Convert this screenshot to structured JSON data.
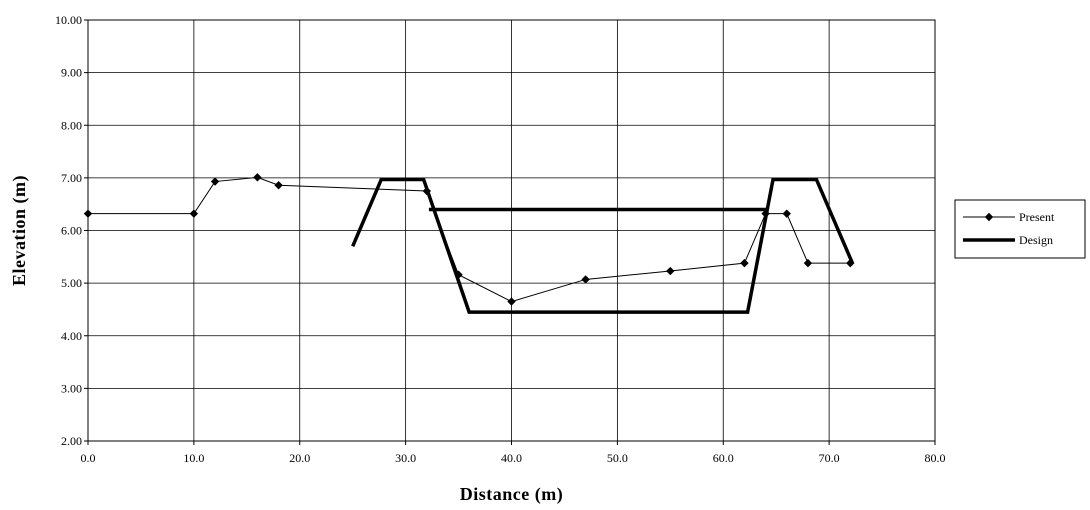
{
  "chart_data": {
    "type": "line",
    "xlabel": "Distance (m)",
    "ylabel": "Elevation (m)",
    "xlim": [
      0,
      80
    ],
    "ylim": [
      2,
      10
    ],
    "x_ticks": [
      "0.0",
      "10.0",
      "20.0",
      "30.0",
      "40.0",
      "50.0",
      "60.0",
      "70.0",
      "80.0"
    ],
    "y_ticks": [
      "2.00",
      "3.00",
      "4.00",
      "5.00",
      "6.00",
      "7.00",
      "8.00",
      "9.00",
      "10.00"
    ],
    "grid": true,
    "legend_position": "right",
    "series": [
      {
        "name": "Present",
        "style": "thin-line-diamond-markers",
        "color": "#000000",
        "points": [
          [
            0,
            6.32
          ],
          [
            10,
            6.32
          ],
          [
            12,
            6.93
          ],
          [
            16,
            7.01
          ],
          [
            18,
            6.86
          ],
          [
            32,
            6.75
          ],
          [
            35,
            5.16
          ],
          [
            40,
            4.65
          ],
          [
            47,
            5.07
          ],
          [
            55,
            5.23
          ],
          [
            62,
            5.38
          ],
          [
            64,
            6.32
          ],
          [
            66,
            6.32
          ],
          [
            68,
            5.38
          ],
          [
            72,
            5.38
          ]
        ]
      },
      {
        "name": "Design",
        "style": "thick-line",
        "color": "#000000",
        "points": [
          [
            25,
            5.7
          ],
          [
            27.7,
            6.97
          ],
          [
            31.7,
            6.97
          ],
          [
            32.2,
            6.4
          ],
          [
            64.2,
            6.4
          ],
          [
            63.3,
            6.97
          ],
          [
            64.7,
            6.97
          ],
          [
            68.7,
            6.97
          ],
          [
            72.2,
            5.38
          ]
        ],
        "points_order_note_free": true,
        "segments": [
          [
            [
              25,
              5.7
            ],
            [
              27.7,
              6.97
            ],
            [
              31.7,
              6.97
            ],
            [
              36,
              4.45
            ],
            [
              62.3,
              4.45
            ],
            [
              64.7,
              6.97
            ],
            [
              68.8,
              6.97
            ],
            [
              72.2,
              5.38
            ]
          ],
          [
            [
              32.2,
              6.4
            ],
            [
              64.2,
              6.4
            ]
          ]
        ]
      }
    ]
  }
}
